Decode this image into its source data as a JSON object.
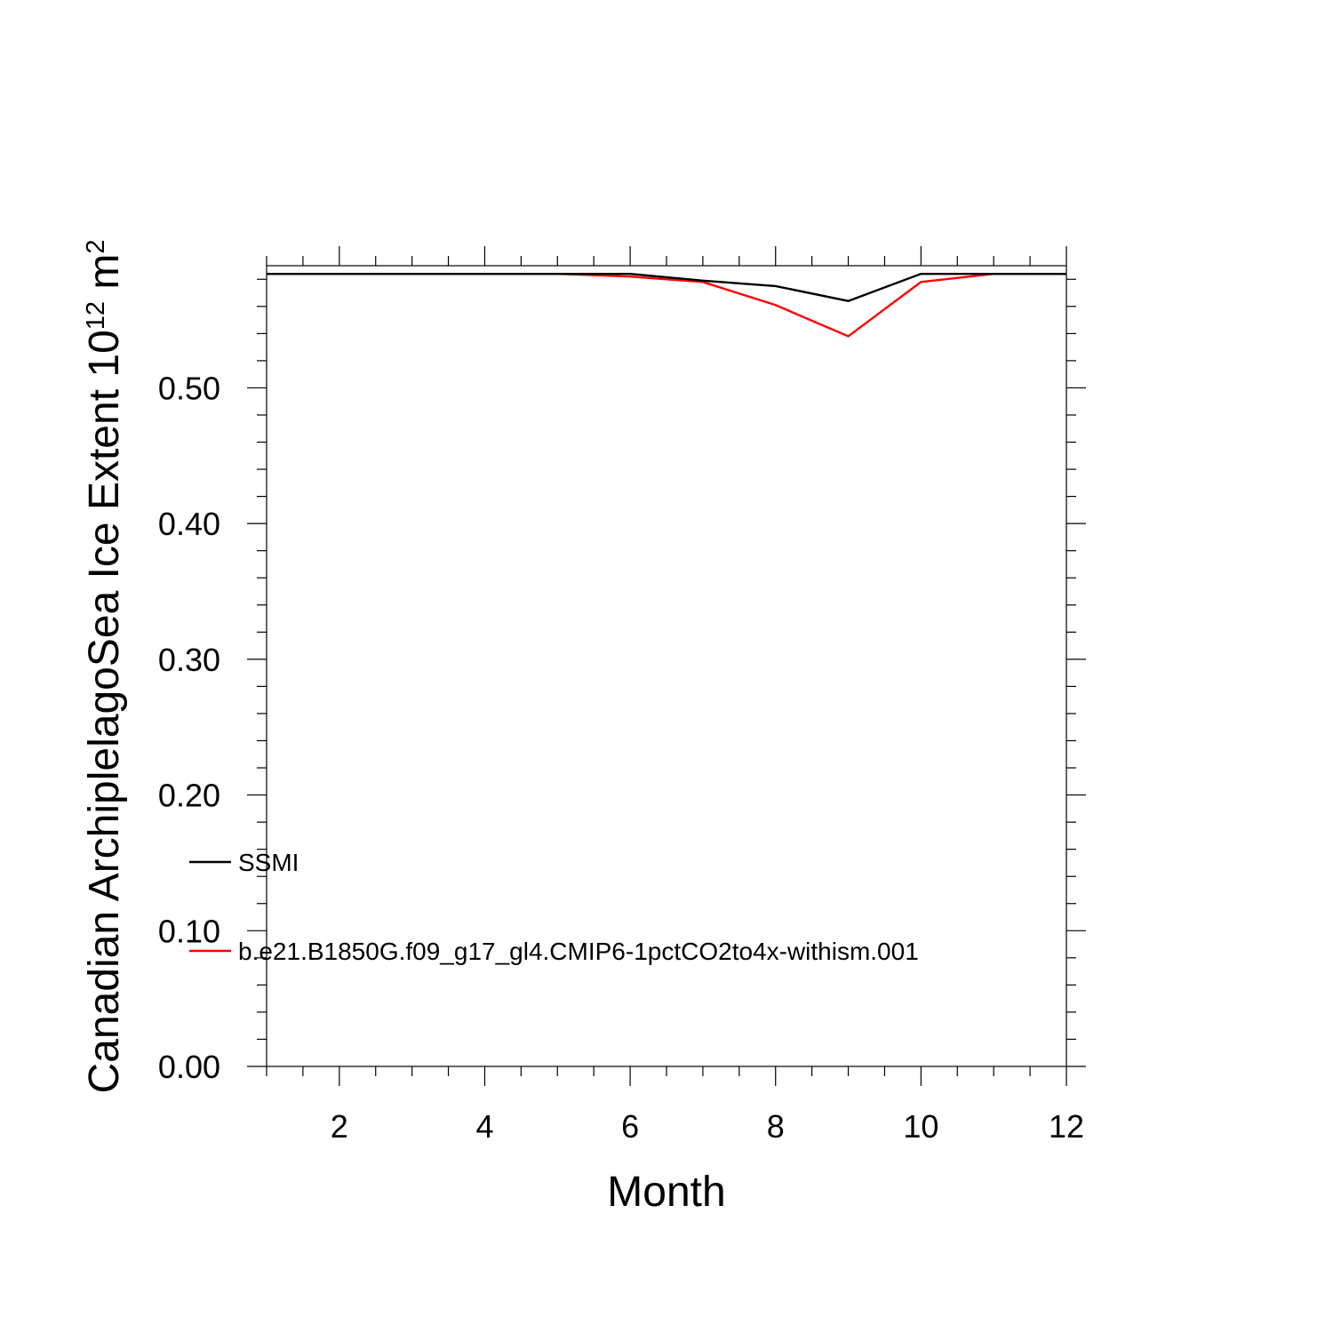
{
  "chart_data": {
    "type": "line",
    "xlabel": "Month",
    "ylabel": {
      "prefix": "Canadian ArchiplelagoSea Ice Extent 10",
      "exp1": "12",
      "mid": " m",
      "exp2": "2"
    },
    "xlim": [
      1,
      12
    ],
    "ylim": [
      0,
      0.59
    ],
    "x_ticks": [
      2,
      4,
      6,
      8,
      10,
      12
    ],
    "y_ticks": [
      0.0,
      0.1,
      0.2,
      0.3,
      0.4,
      0.5
    ],
    "y_tick_labels": [
      "0.00",
      "0.10",
      "0.20",
      "0.30",
      "0.40",
      "0.50"
    ],
    "x": [
      1,
      2,
      3,
      4,
      5,
      6,
      7,
      8,
      9,
      10,
      11,
      12
    ],
    "series": [
      {
        "name": "SSMI",
        "color": "#000000",
        "values": [
          0.584,
          0.584,
          0.584,
          0.584,
          0.584,
          0.584,
          0.579,
          0.575,
          0.564,
          0.584,
          0.584,
          0.584
        ]
      },
      {
        "name": "b.e21.B1850G.f09_g17_gl4.CMIP6-1pctCO2to4x-withism.001",
        "color": "#ff0000",
        "values": [
          0.584,
          0.584,
          0.584,
          0.584,
          0.584,
          0.582,
          0.578,
          0.561,
          0.538,
          0.578,
          0.584,
          0.584
        ]
      }
    ],
    "grid": false,
    "legend_position": "lower-left"
  }
}
